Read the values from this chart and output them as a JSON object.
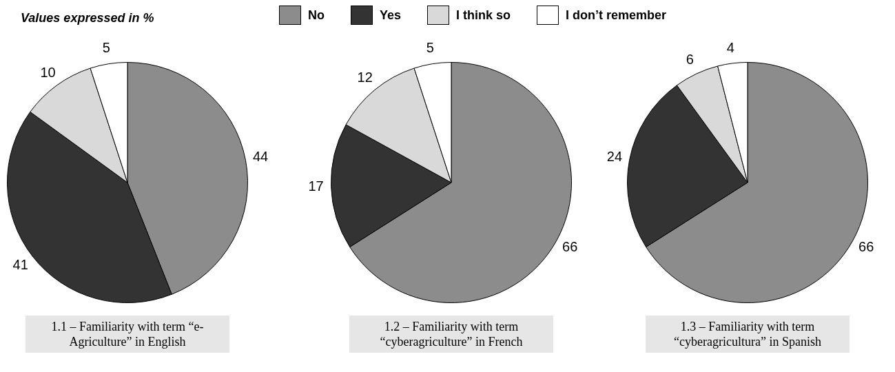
{
  "chart_data": [
    {
      "type": "pie",
      "title": "1.1 – Familiarity with term “e-Agriculture” in English",
      "annotations": [
        "Values expressed in %"
      ],
      "legend": "top",
      "categories": [
        "No",
        "Yes",
        "I think so",
        "I don’t remember"
      ],
      "values": [
        44,
        41,
        10,
        5
      ],
      "colors": [
        "#8c8c8c",
        "#333333",
        "#d9d9d9",
        "#ffffff"
      ],
      "data_labels": true
    },
    {
      "type": "pie",
      "title": "1.2 – Familiarity with term “cyberagriculture” in French",
      "categories": [
        null,
        null,
        null,
        null
      ],
      "values": [
        66,
        17,
        12,
        5
      ],
      "colors": [
        "#8c8c8c",
        "#333333",
        "#d9d9d9",
        "#ffffff"
      ],
      "data_labels": true
    },
    {
      "type": "pie",
      "title": "1.3 – Familiarity with term “cyberagricultura” in Spanish",
      "categories": [
        null,
        null,
        null,
        null
      ],
      "values": [
        66,
        24,
        6,
        4
      ],
      "colors": [
        "#8c8c8c",
        "#333333",
        "#d9d9d9",
        "#ffffff"
      ],
      "data_labels": true
    }
  ]
}
